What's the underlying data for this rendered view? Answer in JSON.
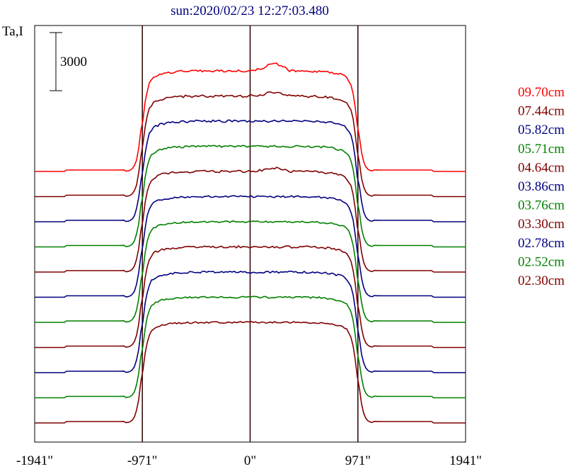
{
  "chart_data": {
    "type": "line",
    "title": "sun:2020/02/23 12:27:03.480",
    "ylabel": "Ta,I",
    "scale_bar_label": "3000",
    "x_tick_labels": [
      "-1941\"",
      "-971\"",
      "0\"",
      "971\"",
      "1941\""
    ],
    "x_ticks": [
      -1941,
      -971,
      0,
      971,
      1941
    ],
    "xlim": [
      -1941,
      1941
    ],
    "vertical_lines": [
      -971,
      0,
      971
    ],
    "grid": false,
    "legend_position": "right",
    "series": [
      {
        "name": "09.70cm",
        "color": "#ff0000",
        "offset": 10,
        "wiggle": 1.6,
        "bump": 2
      },
      {
        "name": "07.44cm",
        "color": "#800000",
        "offset": 9,
        "wiggle": 1.8,
        "bump": 1
      },
      {
        "name": "05.82cm",
        "color": "#000080",
        "offset": 8,
        "wiggle": 1.6,
        "bump": 0
      },
      {
        "name": "05.71cm",
        "color": "#008000",
        "offset": 7,
        "wiggle": 1.5,
        "bump": 0
      },
      {
        "name": "04.64cm",
        "color": "#800000",
        "offset": 6,
        "wiggle": 1.6,
        "bump": 1
      },
      {
        "name": "03.86cm",
        "color": "#000080",
        "offset": 5,
        "wiggle": 1.3,
        "bump": 0
      },
      {
        "name": "03.76cm",
        "color": "#008000",
        "offset": 4,
        "wiggle": 1.2,
        "bump": 0
      },
      {
        "name": "03.30cm",
        "color": "#800000",
        "offset": 3,
        "wiggle": 1.5,
        "bump": 0
      },
      {
        "name": "02.78cm",
        "color": "#000080",
        "offset": 2,
        "wiggle": 1.4,
        "bump": 0
      },
      {
        "name": "02.52cm",
        "color": "#008000",
        "offset": 1,
        "wiggle": 1.3,
        "bump": 0
      },
      {
        "name": "02.30cm",
        "color": "#800000",
        "offset": 0,
        "wiggle": 1.2,
        "bump": 0
      }
    ]
  }
}
